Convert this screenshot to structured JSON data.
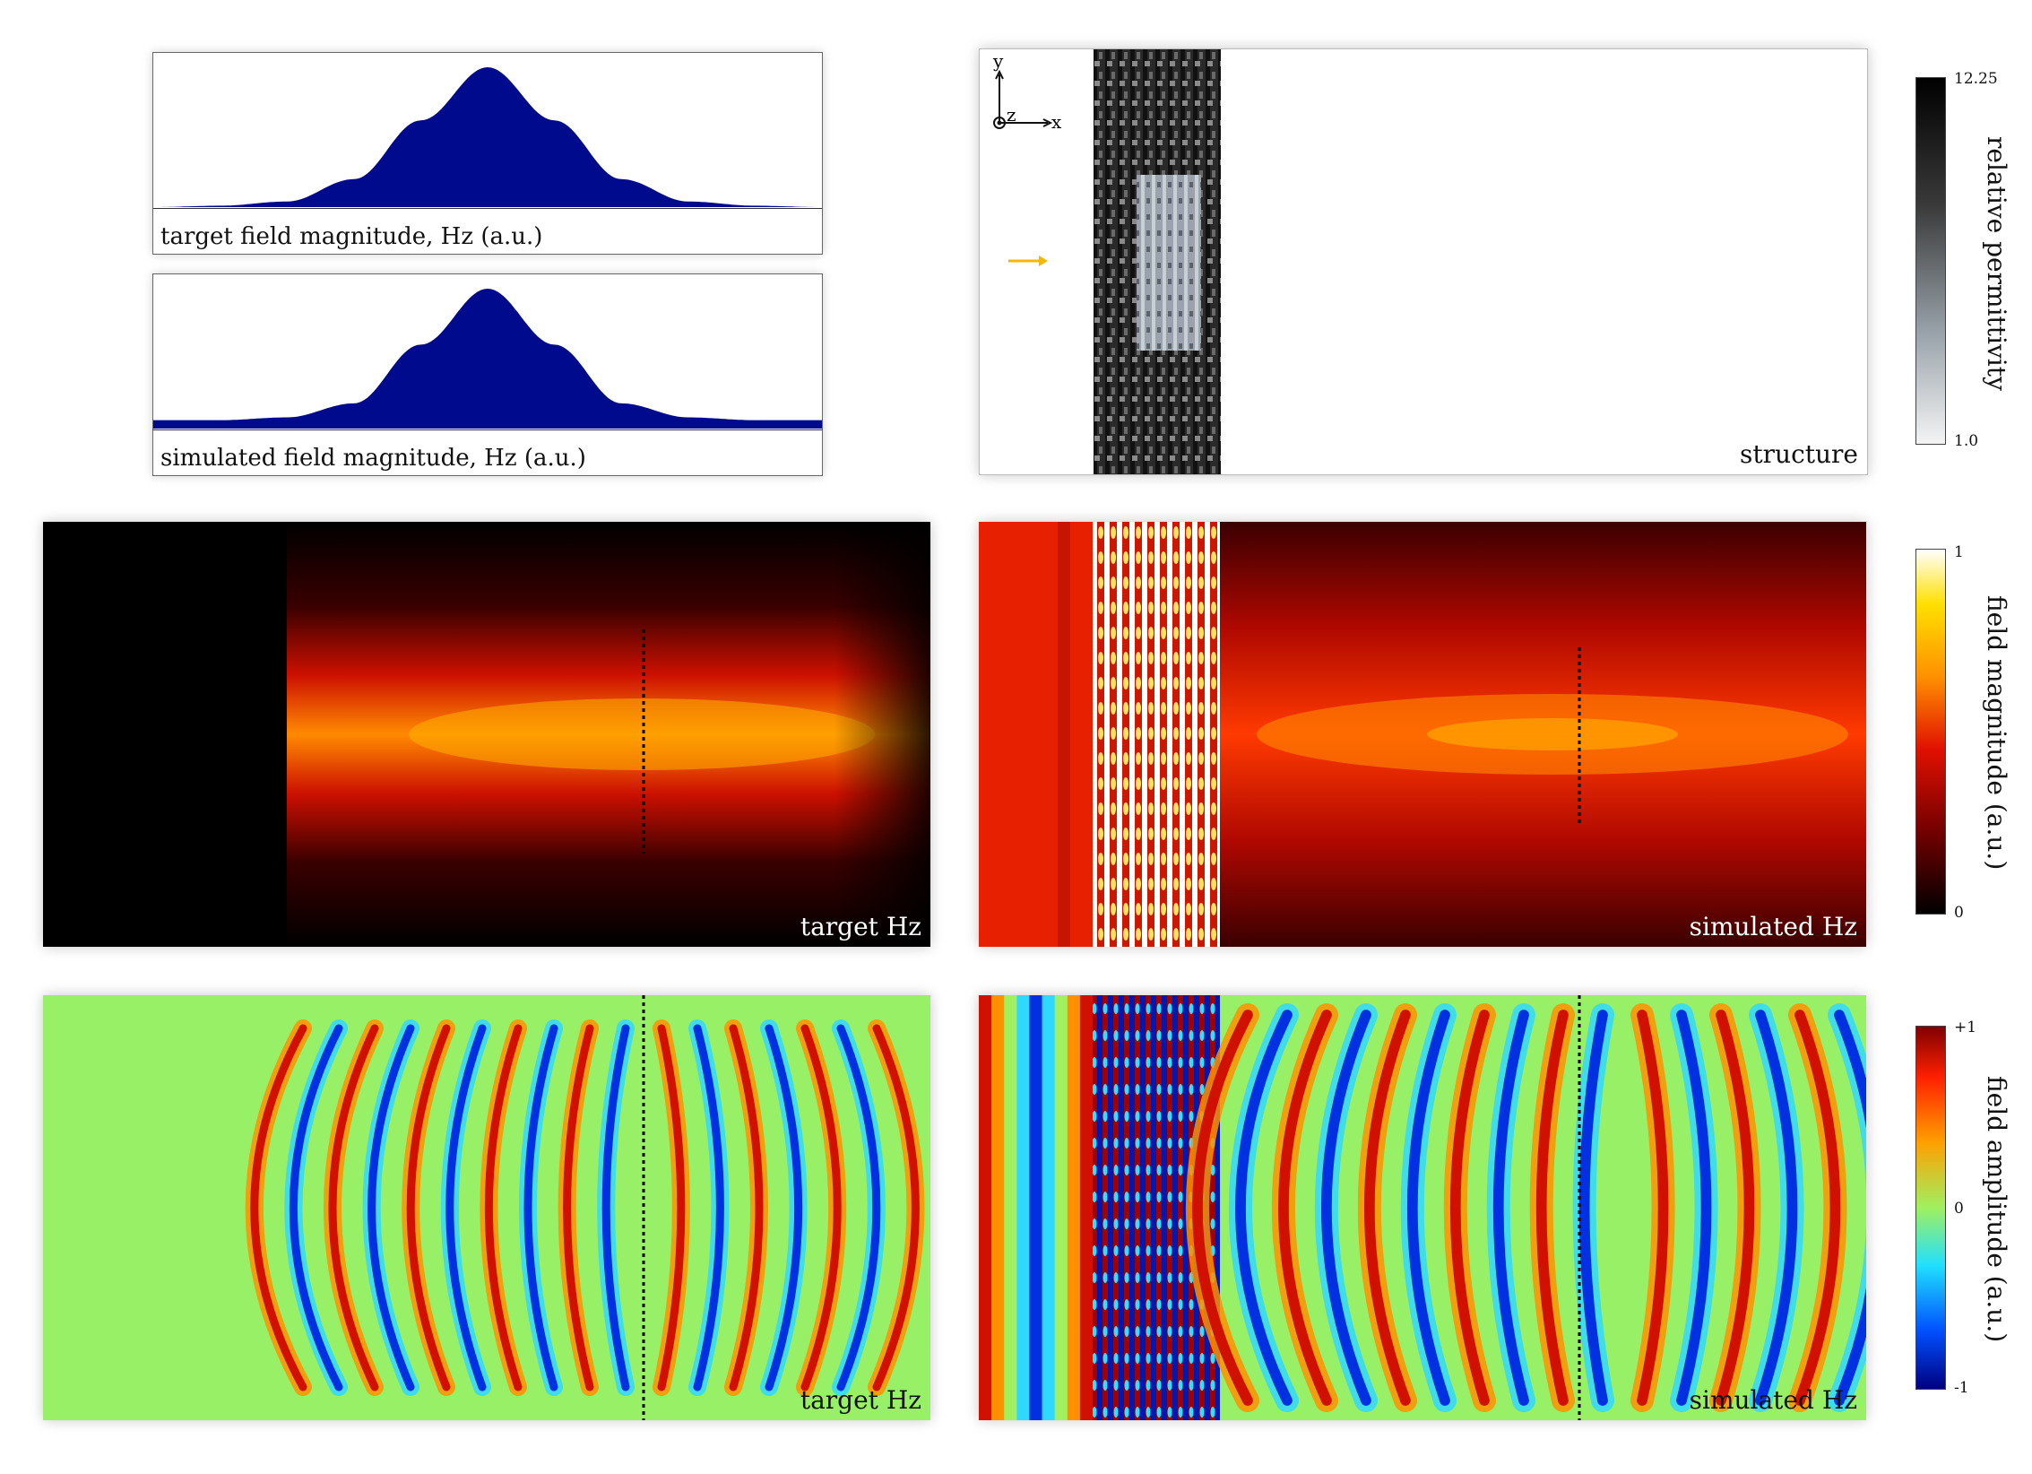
{
  "profiles": {
    "target_caption": "target field magnitude, Hz (a.u.)",
    "simulated_caption": "simulated field magnitude, Hz (a.u.)"
  },
  "structure": {
    "label": "structure",
    "axis_y": "y",
    "axis_z": "z",
    "axis_x": "x"
  },
  "panels": {
    "target_mag_label": "target Hz",
    "simulated_mag_label": "simulated Hz",
    "target_amp_label": "target Hz",
    "simulated_amp_label": "simulated Hz"
  },
  "colorbars": {
    "permittivity": {
      "title": "relative permittivity",
      "max": "12.25",
      "min": "1.0"
    },
    "magnitude": {
      "title": "field magnitude (a.u.)",
      "max": "1",
      "min": "0"
    },
    "amplitude": {
      "title": "field amplitude (a.u.)",
      "max": "+1",
      "mid": "0",
      "min": "-1"
    }
  },
  "colors": {
    "profile_fill": "#000a8c",
    "source_arrow": "#f5b800"
  },
  "chart_data": [
    {
      "type": "area",
      "title": "target field magnitude, Hz (a.u.)",
      "x": [
        0,
        0.1,
        0.2,
        0.3,
        0.4,
        0.5,
        0.6,
        0.7,
        0.8,
        0.9,
        1.0
      ],
      "values": [
        0.0,
        0.01,
        0.04,
        0.2,
        0.62,
        1.0,
        0.62,
        0.2,
        0.04,
        0.01,
        0.0
      ]
    },
    {
      "type": "area",
      "title": "simulated field magnitude, Hz (a.u.)",
      "x": [
        0,
        0.1,
        0.2,
        0.3,
        0.4,
        0.5,
        0.6,
        0.7,
        0.8,
        0.9,
        1.0
      ],
      "values": [
        0.06,
        0.06,
        0.08,
        0.18,
        0.6,
        1.0,
        0.6,
        0.18,
        0.08,
        0.06,
        0.06
      ]
    },
    {
      "type": "heatmap",
      "title": "structure",
      "colorbar_range": [
        1.0,
        12.25
      ]
    },
    {
      "type": "heatmap",
      "title": "target Hz",
      "colorbar_range": [
        0,
        1
      ]
    },
    {
      "type": "heatmap",
      "title": "simulated Hz",
      "colorbar_range": [
        0,
        1
      ]
    },
    {
      "type": "heatmap",
      "title": "target Hz",
      "colorbar_range": [
        -1,
        1
      ]
    },
    {
      "type": "heatmap",
      "title": "simulated Hz",
      "colorbar_range": [
        -1,
        1
      ]
    }
  ]
}
